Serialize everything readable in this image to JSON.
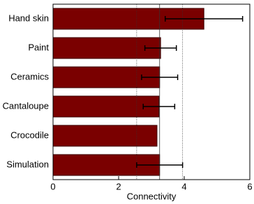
{
  "chart_data": {
    "type": "barh",
    "categories": [
      "Hand skin",
      "Paint",
      "Ceramics",
      "Cantaloupe",
      "Crocodile",
      "Simulation"
    ],
    "values": [
      4.6,
      3.28,
      3.25,
      3.23,
      3.17,
      3.25
    ],
    "errors": [
      1.18,
      0.48,
      0.55,
      0.48,
      null,
      0.7
    ],
    "color": "#7a0000",
    "x_label": "Connectivity",
    "xlim": [
      0,
      6
    ],
    "xticks": [
      0,
      2,
      4,
      6
    ],
    "reference_lines": [
      2.55,
      3.25,
      3.95
    ]
  }
}
